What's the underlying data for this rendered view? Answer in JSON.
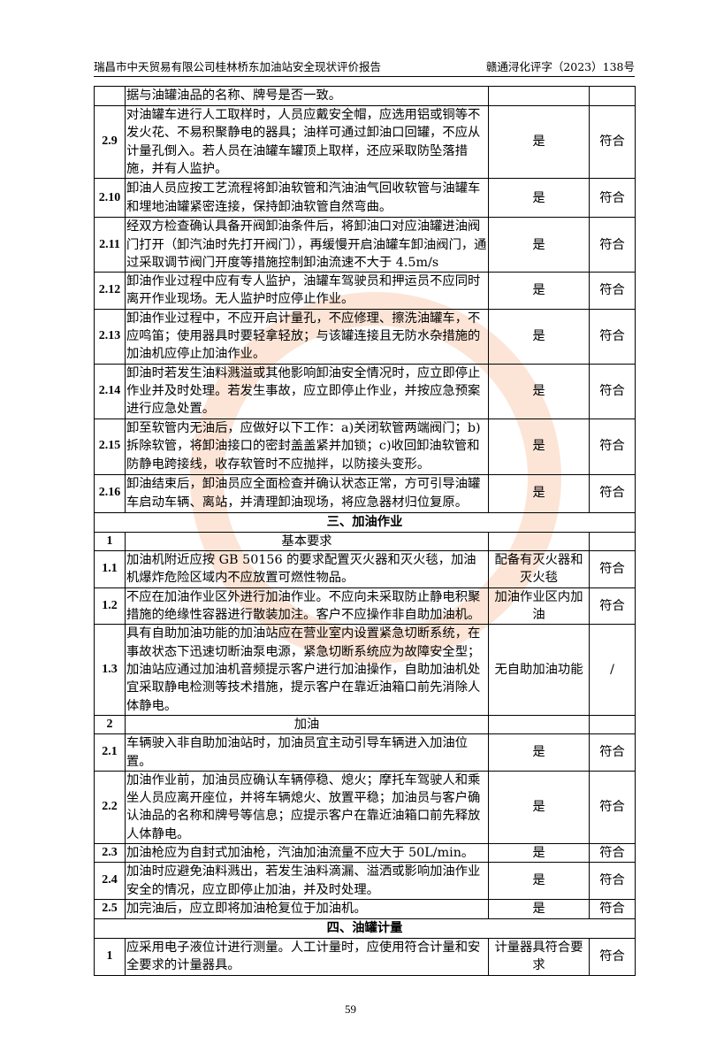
{
  "header": {
    "left": "瑞昌市中天贸易有限公司桂林桥东加油站安全现状评价报告",
    "right": "赣通浔化评字（2023）138号"
  },
  "rows": [
    {
      "type": "item",
      "num": "",
      "content": "据与油罐油品的名称、牌号是否一致。",
      "result": "",
      "conclusion": ""
    },
    {
      "type": "item",
      "num": "2.9",
      "content": "对油罐车进行人工取样时，人员应戴安全帽，应选用铝或铜等不发火花、不易积聚静电的器具；油样可通过卸油口回罐，不应从计量孔倒入。若人员在油罐车罐顶上取样，还应采取防坠落措施，并有人监护。",
      "result": "是",
      "conclusion": "符合"
    },
    {
      "type": "item",
      "num": "2.10",
      "content": "卸油人员应按工艺流程将卸油软管和汽油油气回收软管与油罐车和埋地油罐紧密连接，保持卸油软管自然弯曲。",
      "result": "是",
      "conclusion": "符合"
    },
    {
      "type": "item",
      "num": "2.11",
      "content": "经双方检查确认具备开阀卸油条件后，将卸油口对应油罐进油阀门打开（卸汽油时先打开阀门），再缓慢开启油罐车卸油阀门，通过采取调节阀门开度等措施控制卸油流速不大于 4.5m/s",
      "result": "是",
      "conclusion": "符合"
    },
    {
      "type": "item",
      "num": "2.12",
      "content": "卸油作业过程中应有专人监护，油罐车驾驶员和押运员不应同时离开作业现场。无人监护时应停止作业。",
      "result": "是",
      "conclusion": "符合"
    },
    {
      "type": "item",
      "num": "2.13",
      "content": "卸油作业过程中，不应开启计量孔，不应修理、擦洗油罐车，不应鸣笛；使用器具时要轻拿轻放；与该罐连接且无防水杂措施的加油机应停止加油作业。",
      "result": "是",
      "conclusion": "符合"
    },
    {
      "type": "item",
      "num": "2.14",
      "content": "卸油时若发生油料溅溢或其他影响卸油安全情况时，应立即停止作业并及时处理。若发生事故，应立即停止作业，并按应急预案进行应急处置。",
      "result": "是",
      "conclusion": "符合"
    },
    {
      "type": "item",
      "num": "2.15",
      "content": "卸至软管内无油后，应做好以下工作：a)关闭软管两端阀门；b)拆除软管，将卸油接口的密封盖盖紧并加锁；c)收回卸油软管和防静电跨接线，收存软管时不应抛拌，以防接头变形。",
      "result": "是",
      "conclusion": "符合"
    },
    {
      "type": "item",
      "num": "2.16",
      "content": "卸油结束后，卸油员应全面检查并确认状态正常，方可引导油罐车启动车辆、离站，并清理卸油现场，将应急器材归位复原。",
      "result": "是",
      "conclusion": "符合"
    },
    {
      "type": "section",
      "label": "三、加油作业"
    },
    {
      "type": "sub",
      "num": "1",
      "label": "基本要求"
    },
    {
      "type": "item",
      "num": "1.1",
      "content": "加油机附近应按 GB 50156 的要求配置灭火器和灭火毯，加油机爆炸危险区域内不应放置可燃性物品。",
      "result": "配备有灭火器和灭火毯",
      "conclusion": "符合"
    },
    {
      "type": "item",
      "num": "1.2",
      "content": "不应在加油作业区外进行加油作业。不应向未采取防止静电积聚措施的绝缘性容器进行散装加注。客户不应操作非自助加油机。",
      "result": "加油作业区内加油",
      "conclusion": "符合"
    },
    {
      "type": "item",
      "num": "1.3",
      "content": "具有自助加油功能的加油站应在营业室内设置紧急切断系统，在事故状态下迅速切断油泵电源，紧急切断系统应为故障安全型；加油站应通过加油机音频提示客户进行加油操作，自助加油机处宜采取静电检测等技术措施，提示客户在靠近油箱口前先消除人体静电。",
      "result": "无自助加油功能",
      "conclusion": "/"
    },
    {
      "type": "sub",
      "num": "2",
      "label": "加油"
    },
    {
      "type": "item",
      "num": "2.1",
      "content": "车辆驶入非自助加油站时，加油员宜主动引导车辆进入加油位置。",
      "result": "是",
      "conclusion": "符合"
    },
    {
      "type": "item",
      "num": "2.2",
      "content": "加油作业前，加油员应确认车辆停稳、熄火；摩托车驾驶人和乘坐人员应离开座位，并将车辆熄火、放置平稳；加油员与客户确认油品的名称和牌号等信息；应提示客户在靠近油箱口前先释放人体静电。",
      "result": "是",
      "conclusion": "符合"
    },
    {
      "type": "item",
      "num": "2.3",
      "content": "加油枪应为自封式加油枪，汽油加油流量不应大于 50L/min。",
      "result": "是",
      "conclusion": "符合"
    },
    {
      "type": "item",
      "num": "2.4",
      "content": "加油时应避免油料溅出，若发生油料滴漏、溢洒或影响加油作业安全的情况，应立即停止加油，并及时处理。",
      "result": "是",
      "conclusion": "符合"
    },
    {
      "type": "item",
      "num": "2.5",
      "content": "加完油后，应立即将加油枪复位于加油机。",
      "result": "是",
      "conclusion": "符合"
    },
    {
      "type": "section",
      "label": "四、油罐计量"
    },
    {
      "type": "item",
      "num": "1",
      "content": "应采用电子液位计进行测量。人工计量时，应使用符合计量和安全要求的计量器具。",
      "result": "计量器具符合要求",
      "conclusion": "符合"
    }
  ],
  "footer": {
    "page": "59"
  }
}
